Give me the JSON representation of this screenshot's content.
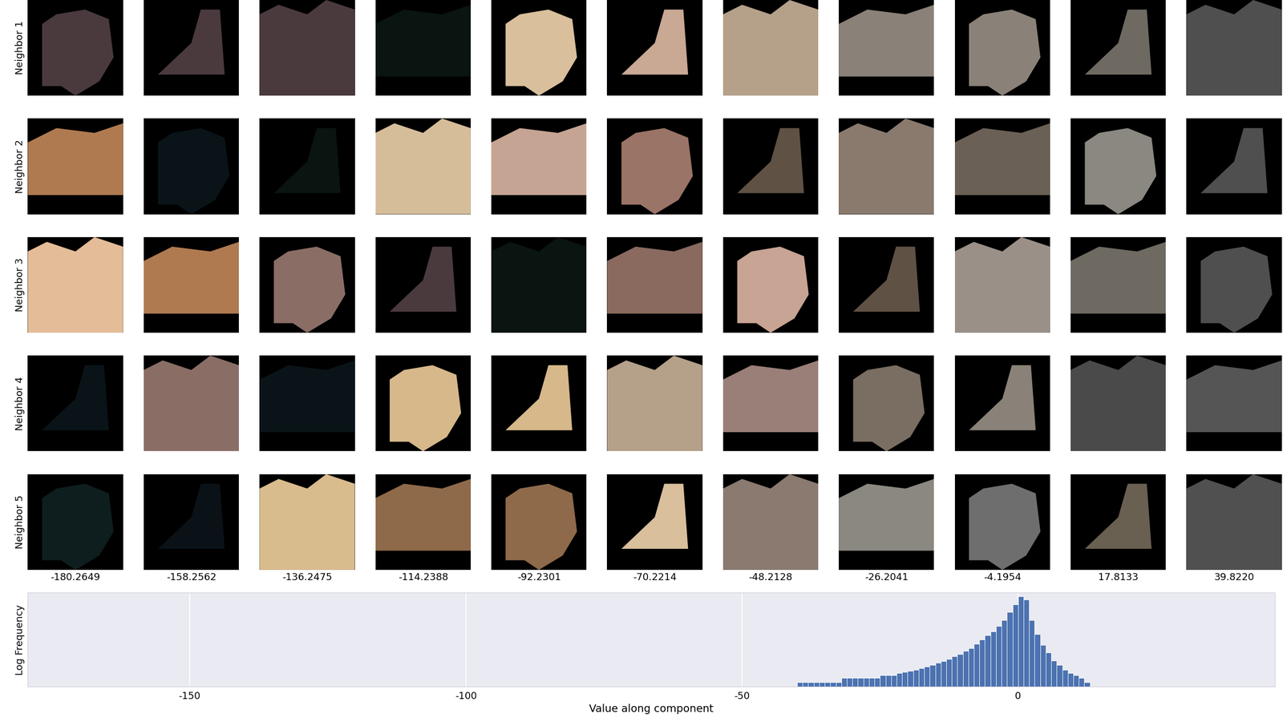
{
  "chart_data": {
    "type": "histogram",
    "xlabel": "Value along component",
    "ylabel": "Log Frequency",
    "bins": [
      -40,
      -39,
      -38,
      -37,
      -36,
      -35,
      -34,
      -33,
      -32,
      -31,
      -30,
      -29,
      -28,
      -27,
      -26,
      -25,
      -24,
      -23,
      -22,
      -21,
      -20,
      -19,
      -18,
      -17,
      -16,
      -15,
      -14,
      -13,
      -12,
      -11,
      -10,
      -9,
      -8,
      -7,
      -6,
      -5,
      -4,
      -3,
      -2,
      -1,
      0,
      1,
      2,
      3,
      4,
      5,
      6,
      7,
      8,
      9,
      10,
      11,
      12,
      13
    ],
    "counts": [
      1,
      1,
      1,
      1,
      1,
      1,
      1,
      1,
      2,
      2,
      2,
      2,
      2,
      2,
      2,
      3,
      3,
      3,
      4,
      5,
      6,
      7,
      9,
      11,
      14,
      20,
      26,
      37,
      53,
      76,
      123,
      199,
      362,
      742,
      1358,
      2467,
      5740,
      15000,
      50000,
      166000,
      550000,
      340000,
      15000,
      1730,
      322,
      96,
      29,
      14,
      7,
      4,
      3,
      2,
      1
    ],
    "xlim": [
      -179.3,
      46.5
    ],
    "xticks": [
      -150,
      -100,
      -50,
      0
    ],
    "ylim": [
      0.5,
      1000000
    ],
    "log": "y",
    "grid": true,
    "tick_labels": "x",
    "color": "#4c72b0"
  },
  "neighbors": {
    "row_labels": [
      "Neighbor 1",
      "Neighbor 2",
      "Neighbor 3",
      "Neighbor 4",
      "Neighbor 5"
    ],
    "column_labels": [
      "-180.2649",
      "-158.2562",
      "-136.2475",
      "-114.2388",
      "-92.2301",
      "-70.2214",
      "-48.2128",
      "-26.2041",
      "-4.1954",
      "17.8133",
      "39.8220"
    ]
  }
}
